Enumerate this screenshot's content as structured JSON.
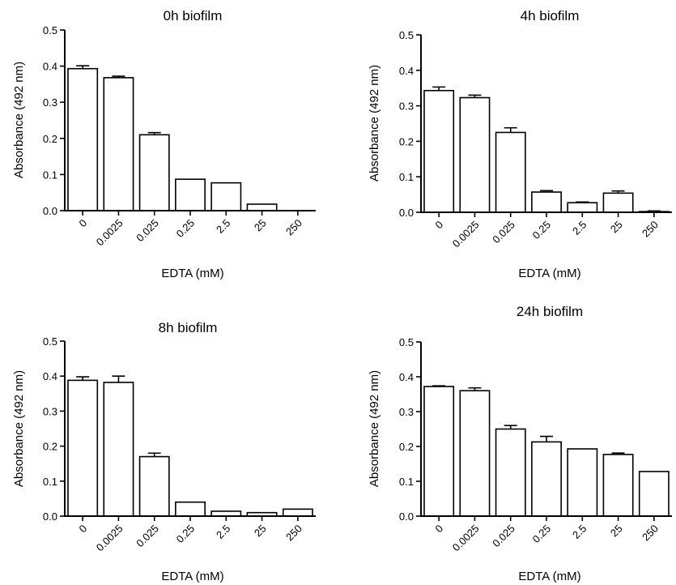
{
  "chart_data": [
    {
      "type": "bar",
      "title": "0h biofilm",
      "xlabel": "EDTA (mM)",
      "ylabel": "Absorbance (492 nm)",
      "categories": [
        "0",
        "0.0025",
        "0.025",
        "0.25",
        "2.5",
        "25",
        "250"
      ],
      "values": [
        0.393,
        0.368,
        0.21,
        0.087,
        0.077,
        0.018,
        0.0
      ],
      "errors": [
        0.008,
        0.004,
        0.006,
        0,
        0,
        0,
        0
      ],
      "ylim": [
        0,
        0.5
      ],
      "yticks": [
        "0.0",
        "0.1",
        "0.2",
        "0.3",
        "0.4",
        "0.5"
      ],
      "grid": false
    },
    {
      "type": "bar",
      "title": "4h biofilm",
      "xlabel": "EDTA (mM)",
      "ylabel": "Absorbance (492 nm)",
      "categories": [
        "0",
        "0.0025",
        "0.025",
        "0.25",
        "2.5",
        "25",
        "250"
      ],
      "values": [
        0.343,
        0.323,
        0.225,
        0.057,
        0.027,
        0.054,
        0.002
      ],
      "errors": [
        0.01,
        0.007,
        0.013,
        0.004,
        0.002,
        0.006,
        0.002
      ],
      "ylim": [
        0,
        0.5
      ],
      "yticks": [
        "0.0",
        "0.1",
        "0.2",
        "0.3",
        "0.4",
        "0.5"
      ],
      "grid": false
    },
    {
      "type": "bar",
      "title": "8h biofilm",
      "xlabel": "EDTA (mM)",
      "ylabel": "Absorbance (492 nm)",
      "categories": [
        "0",
        "0.0025",
        "0.025",
        "0.25",
        "2.5",
        "25",
        "250"
      ],
      "values": [
        0.388,
        0.382,
        0.17,
        0.04,
        0.014,
        0.01,
        0.02
      ],
      "errors": [
        0.01,
        0.018,
        0.01,
        0,
        0,
        0,
        0
      ],
      "ylim": [
        0,
        0.5
      ],
      "yticks": [
        "0.0",
        "0.1",
        "0.2",
        "0.3",
        "0.4",
        "0.5"
      ],
      "grid": false
    },
    {
      "type": "bar",
      "title": "24h biofilm",
      "xlabel": "EDTA (mM)",
      "ylabel": "Absorbance (492 nm)",
      "categories": [
        "0",
        "0.0025",
        "0.025",
        "0.25",
        "2.5",
        "25",
        "250"
      ],
      "values": [
        0.372,
        0.36,
        0.25,
        0.213,
        0.193,
        0.177,
        0.128
      ],
      "errors": [
        0.002,
        0.008,
        0.01,
        0.016,
        0,
        0.004,
        0
      ],
      "ylim": [
        0,
        0.5
      ],
      "yticks": [
        "0.0",
        "0.1",
        "0.2",
        "0.3",
        "0.4",
        "0.5"
      ],
      "grid": false
    }
  ]
}
